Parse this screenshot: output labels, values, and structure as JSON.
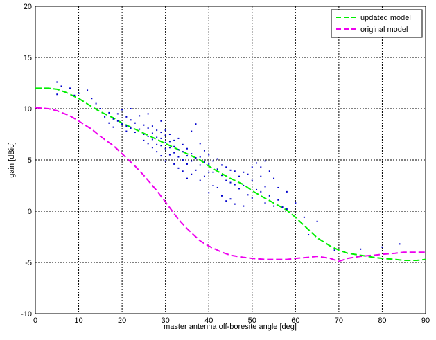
{
  "chart_data": {
    "type": "line",
    "xlabel": "master antenna off-boresite angle [deg]",
    "ylabel": "gain [dBic]",
    "xlim": [
      0,
      90
    ],
    "ylim": [
      -10,
      20
    ],
    "xticks": [
      "0",
      "10",
      "20",
      "30",
      "40",
      "50",
      "60",
      "70",
      "80",
      "90"
    ],
    "yticks": [
      "-10",
      "-5",
      "0",
      "5",
      "10",
      "15",
      "20"
    ],
    "grid": true,
    "legend_position": "top-right",
    "colors": {
      "updated": "#00ee00",
      "original": "#ee00ee",
      "measured": "#0000cc",
      "grid": "#000000"
    },
    "series": [
      {
        "name": "updated model",
        "color": "#00ee00",
        "style": "dashed",
        "x": [
          0,
          3,
          5,
          7,
          10,
          13,
          15,
          18,
          20,
          22,
          25,
          28,
          30,
          32,
          35,
          38,
          40,
          42,
          45,
          48,
          50,
          52,
          55,
          58,
          60,
          63,
          65,
          68,
          70,
          72,
          75,
          78,
          80,
          83,
          85,
          88,
          90
        ],
        "y": [
          12,
          12,
          11.9,
          11.6,
          11,
          10.2,
          9.7,
          9.1,
          8.6,
          8.2,
          7.6,
          7.0,
          6.6,
          6.2,
          5.6,
          5.0,
          4.4,
          3.9,
          3.2,
          2.6,
          2.0,
          1.5,
          0.8,
          0.1,
          -0.6,
          -1.8,
          -2.6,
          -3.4,
          -3.8,
          -4.1,
          -4.3,
          -4.5,
          -4.6,
          -4.7,
          -4.8,
          -4.8,
          -4.7
        ]
      },
      {
        "name": "original model",
        "color": "#ee00ee",
        "style": "dashed",
        "x": [
          0,
          3,
          5,
          8,
          10,
          13,
          15,
          18,
          20,
          23,
          25,
          28,
          30,
          33,
          35,
          38,
          40,
          43,
          45,
          48,
          50,
          53,
          55,
          58,
          60,
          63,
          65,
          68,
          70,
          72,
          75,
          78,
          80,
          83,
          85,
          88,
          90
        ],
        "y": [
          10.1,
          10.0,
          9.8,
          9.3,
          8.8,
          8.0,
          7.3,
          6.4,
          5.6,
          4.4,
          3.5,
          2.0,
          0.9,
          -0.8,
          -1.7,
          -2.9,
          -3.4,
          -4.0,
          -4.3,
          -4.5,
          -4.6,
          -4.7,
          -4.7,
          -4.7,
          -4.6,
          -4.5,
          -4.4,
          -4.6,
          -4.9,
          -4.6,
          -4.4,
          -4.3,
          -4.2,
          -4.1,
          -4.0,
          -4.0,
          -4.0
        ]
      },
      {
        "name": "",
        "color": "#0000cc",
        "style": "markers",
        "x": [
          5,
          5,
          6,
          8,
          9,
          10,
          12,
          13,
          14,
          15,
          16,
          17,
          17,
          18,
          18,
          19,
          19,
          20,
          20,
          21,
          21,
          21,
          22,
          22,
          22,
          23,
          23,
          24,
          24,
          25,
          25,
          25,
          26,
          26,
          26,
          26,
          27,
          27,
          27,
          27,
          28,
          28,
          28,
          28,
          29,
          29,
          29,
          29,
          29,
          30,
          30,
          30,
          30,
          30,
          31,
          31,
          31,
          31,
          32,
          32,
          32,
          32,
          33,
          33,
          33,
          33,
          34,
          34,
          34,
          34,
          35,
          35,
          35,
          35,
          36,
          36,
          36,
          36,
          37,
          37,
          37,
          38,
          38,
          38,
          38,
          39,
          39,
          39,
          40,
          40,
          40,
          40,
          41,
          41,
          41,
          42,
          42,
          42,
          43,
          43,
          43,
          44,
          44,
          44,
          45,
          45,
          45,
          46,
          46,
          46,
          47,
          47,
          48,
          48,
          48,
          49,
          49,
          50,
          50,
          50,
          51,
          51,
          52,
          52,
          52,
          53,
          53,
          53,
          54,
          54,
          55,
          55,
          56,
          56,
          57,
          58,
          58,
          60,
          62,
          63,
          65,
          69,
          75,
          80,
          84
        ],
        "y": [
          12.6,
          11.4,
          12.2,
          12.0,
          11.3,
          11.5,
          11.8,
          11.0,
          10.5,
          10.0,
          9.2,
          9.6,
          8.6,
          9.0,
          8.2,
          9.5,
          8.8,
          9.9,
          8.5,
          9.2,
          8.3,
          7.8,
          10.0,
          8.9,
          8.1,
          8.6,
          7.7,
          9.3,
          8.0,
          8.4,
          7.5,
          6.9,
          9.5,
          8.1,
          7.3,
          6.6,
          8.3,
          7.6,
          7.0,
          6.2,
          7.9,
          7.2,
          6.5,
          5.8,
          8.8,
          7.7,
          7.1,
          6.4,
          5.4,
          7.9,
          7.4,
          6.7,
          6.1,
          4.9,
          7.5,
          6.8,
          6.2,
          5.5,
          6.9,
          6.3,
          5.7,
          4.6,
          7.1,
          6.0,
          5.3,
          4.2,
          6.5,
          5.8,
          5.0,
          3.9,
          6.1,
          5.4,
          4.6,
          3.2,
          7.8,
          5.6,
          4.9,
          3.6,
          8.5,
          5.2,
          4.0,
          6.6,
          5.3,
          4.5,
          3.0,
          5.9,
          4.8,
          3.4,
          5.5,
          4.6,
          3.8,
          1.8,
          4.9,
          3.8,
          2.5,
          5.1,
          4.1,
          2.3,
          4.5,
          3.5,
          1.5,
          4.3,
          3.0,
          1.0,
          4.0,
          2.8,
          1.2,
          3.9,
          2.6,
          0.7,
          3.4,
          2.2,
          3.8,
          2.5,
          0.5,
          3.6,
          1.6,
          4.3,
          3.0,
          1.3,
          4.7,
          2.1,
          4.3,
          3.4,
          1.9,
          4.9,
          2.4,
          0.8,
          3.9,
          1.5,
          3.2,
          0.5,
          2.3,
          1.1,
          0.4,
          1.9,
          0.2,
          0.8,
          -0.6,
          -2.3,
          -1.0,
          -3.8,
          -3.7,
          -3.5,
          -3.2
        ]
      }
    ]
  }
}
